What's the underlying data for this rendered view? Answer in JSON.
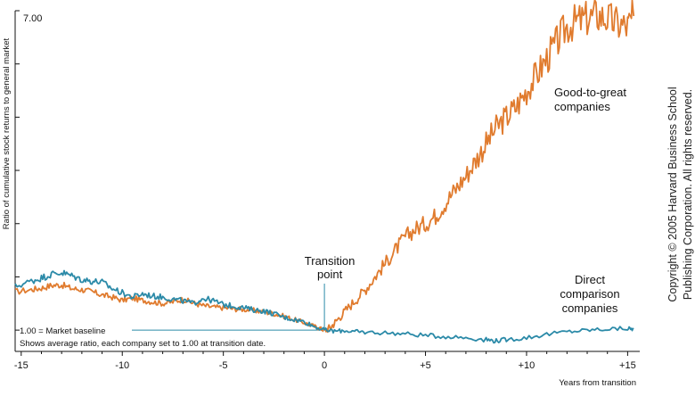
{
  "chart_data": {
    "type": "line",
    "title": "",
    "ylabel": "Ratio of cumulative stock returns to general market",
    "xlabel": "Years from transition",
    "y_top_label": "7.00",
    "xlim": [
      -15.3,
      15.6
    ],
    "ylim": [
      0.6,
      7.0
    ],
    "x_ticks": [
      -15,
      -10,
      -5,
      0,
      5,
      10,
      15
    ],
    "x_tick_labels": [
      "-15",
      "-10",
      "-5",
      "0",
      "+5",
      "+10",
      "+15"
    ],
    "y_ticks": [
      1,
      2,
      3,
      4,
      5,
      6,
      7
    ],
    "series": [
      {
        "name": "Good-to-great companies",
        "color": "#e07b2e",
        "x": [
          -15.3,
          -14.5,
          -14,
          -13.5,
          -13,
          -12.5,
          -12,
          -11.5,
          -11,
          -10.5,
          -10,
          -9.5,
          -9,
          -8.5,
          -8,
          -7.5,
          -7,
          -6.5,
          -6,
          -5.5,
          -5,
          -4.5,
          -4,
          -3.5,
          -3,
          -2.5,
          -2,
          -1.5,
          -1,
          -0.5,
          -0.2,
          0,
          0.3,
          0.6,
          1,
          1.5,
          2,
          2.5,
          3,
          3.5,
          4,
          4.5,
          5,
          5.5,
          6,
          6.5,
          7,
          7.5,
          8,
          8.5,
          9,
          9.5,
          10,
          10.5,
          11,
          11.5,
          12,
          12.5,
          13,
          13.5,
          14,
          14.5,
          15,
          15.3
        ],
        "values": [
          1.72,
          1.76,
          1.79,
          1.84,
          1.85,
          1.78,
          1.76,
          1.72,
          1.66,
          1.62,
          1.56,
          1.6,
          1.56,
          1.53,
          1.5,
          1.53,
          1.58,
          1.51,
          1.46,
          1.43,
          1.42,
          1.4,
          1.39,
          1.37,
          1.34,
          1.31,
          1.26,
          1.2,
          1.14,
          1.07,
          1.03,
          1.0,
          1.05,
          1.18,
          1.35,
          1.55,
          1.75,
          2.0,
          2.25,
          2.5,
          2.75,
          2.9,
          3.0,
          3.15,
          3.4,
          3.65,
          3.9,
          4.2,
          4.5,
          4.8,
          5.0,
          5.2,
          5.5,
          5.8,
          6.1,
          6.4,
          6.7,
          6.8,
          6.85,
          6.92,
          6.85,
          6.75,
          6.7,
          6.9
        ]
      },
      {
        "name": "Direct comparison companies",
        "color": "#2b8aa8",
        "x": [
          -15.3,
          -14.5,
          -14,
          -13.5,
          -13,
          -12.5,
          -12,
          -11.5,
          -11,
          -10.5,
          -10,
          -9.5,
          -9,
          -8.5,
          -8,
          -7.5,
          -7,
          -6.5,
          -6,
          -5.5,
          -5,
          -4.5,
          -4,
          -3.5,
          -3,
          -2.5,
          -2,
          -1.5,
          -1,
          -0.5,
          0,
          0.5,
          1,
          1.5,
          2,
          3,
          4,
          5,
          6,
          7,
          8,
          8.5,
          9,
          10,
          11,
          12,
          13,
          14,
          15,
          15.3
        ],
        "values": [
          1.82,
          1.92,
          1.98,
          2.05,
          2.08,
          2.02,
          1.95,
          1.92,
          1.9,
          1.78,
          1.7,
          1.62,
          1.68,
          1.64,
          1.62,
          1.58,
          1.55,
          1.5,
          1.6,
          1.55,
          1.48,
          1.45,
          1.42,
          1.38,
          1.36,
          1.31,
          1.24,
          1.2,
          1.16,
          1.07,
          1.0,
          0.98,
          0.99,
          0.97,
          0.96,
          0.95,
          0.93,
          0.9,
          0.88,
          0.86,
          0.82,
          0.8,
          0.82,
          0.86,
          0.92,
          0.97,
          1.0,
          1.02,
          1.03,
          1.02
        ]
      }
    ],
    "annotations": {
      "transition": "Transition\npoint",
      "good_label": "Good-to-great\ncompanies",
      "direct_label": "Direct\ncomparison\ncompanies",
      "baseline_label": "1.00 = Market baseline",
      "note": "Shows average ratio, each company set to 1.00 at transition date.",
      "copyright": "Copyright © 2005 Harvard Business School\nPublishing Corporation. All rights reserved."
    },
    "grid": false,
    "legend": "none"
  }
}
